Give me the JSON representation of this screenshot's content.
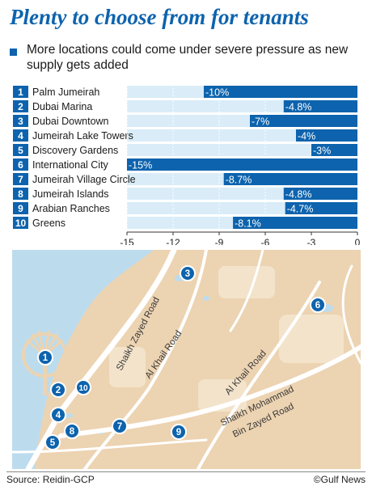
{
  "header": {
    "title": "Plenty to choose from for tenants",
    "subtitle": "More locations could come under severe pressure as new supply gets added"
  },
  "colors": {
    "accent": "#0d63ad",
    "bar_bg": "#d9ecf8",
    "map_land": "#ecd3b1",
    "map_water": "#bcdcee",
    "road": "#ffffff"
  },
  "chart_data": {
    "type": "bar",
    "orientation": "horizontal",
    "title": "Plenty to choose from for tenants",
    "subtitle": "More locations could come under severe pressure as new supply gets added",
    "categories": [
      "Palm Jumeirah",
      "Dubai Marina",
      "Dubai Downtown",
      "Jumeirah Lake Towers",
      "Discovery Gardens",
      "International City",
      "Jumeirah Village Circle",
      "Jumeirah Islands",
      "Arabian Ranches",
      "Greens"
    ],
    "ranks": [
      "1",
      "2",
      "3",
      "4",
      "5",
      "6",
      "7",
      "8",
      "9",
      "10"
    ],
    "values": [
      -10,
      -4.8,
      -7,
      -4,
      -3,
      -15,
      -8.7,
      -4.8,
      -4.7,
      -8.1
    ],
    "value_labels": [
      "-10%",
      "-4.8%",
      "-7%",
      "-4%",
      "-3%",
      "-15%",
      "-8.7%",
      "-4.8%",
      "-4.7%",
      "-8.1%"
    ],
    "xlim": [
      -15,
      0
    ],
    "xticks": [
      -15,
      -12,
      -9,
      -6,
      -3,
      0
    ],
    "xtick_labels": [
      "-15",
      "-12",
      "-9",
      "-6",
      "-3",
      "0"
    ],
    "xlabel": "",
    "ylabel": "",
    "grid": true
  },
  "map": {
    "roads": [
      "Shaikh Zayed Road",
      "Al Khail Road",
      "Al Khail Road",
      "Shaikh Mohammad",
      "Bin Zayed Road"
    ],
    "markers": [
      "1",
      "2",
      "3",
      "4",
      "5",
      "6",
      "7",
      "8",
      "9",
      "10"
    ]
  },
  "footer": {
    "source": "Source: Reidin-GCP",
    "credit": "©Gulf News"
  }
}
